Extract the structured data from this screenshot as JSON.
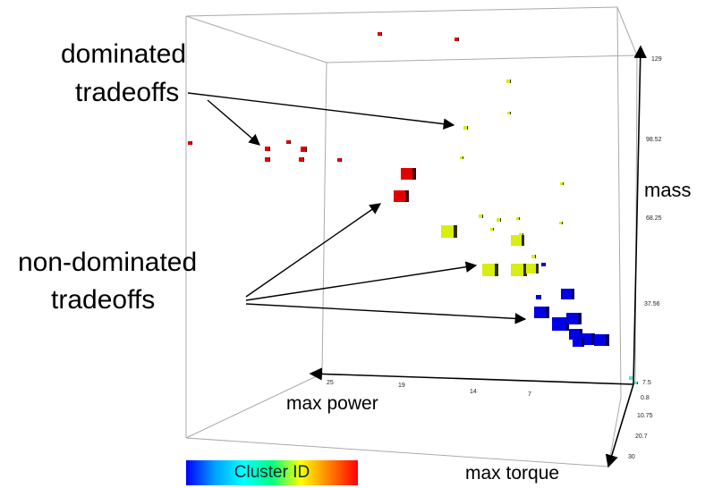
{
  "chart_data": {
    "type": "scatter",
    "projection": "3d",
    "title": "",
    "axes": {
      "max_power": {
        "label": "max power",
        "ticks": [
          "25",
          "19",
          "14",
          "7"
        ]
      },
      "mass": {
        "label": "mass",
        "ticks": [
          "129",
          "98.52",
          "68.25",
          "37.56",
          "7.5"
        ]
      },
      "max_torque": {
        "label": "max torque",
        "ticks": [
          "0.8",
          "10.75",
          "20.7",
          "30"
        ]
      }
    },
    "annotations": [
      {
        "text_line1": "dominated",
        "text_line2": "tradeoffs"
      },
      {
        "text_line1": "non-dominated",
        "text_line2": "tradeoffs"
      }
    ],
    "colorbar": {
      "label": "Cluster ID",
      "gradient": [
        "#0000ff",
        "#00a0ff",
        "#00ffff",
        "#00ff80",
        "#ffff00",
        "#ff8000",
        "#ff0000"
      ]
    },
    "clusters": {
      "red": {
        "color": "#e00000",
        "side": "#400000"
      },
      "yellow": {
        "color": "#d8ee10",
        "side": "#303000"
      },
      "blue": {
        "color": "#0000e6",
        "side": "#000060"
      },
      "cyan": {
        "color": "#60e0d0",
        "side": "#206060"
      }
    }
  }
}
